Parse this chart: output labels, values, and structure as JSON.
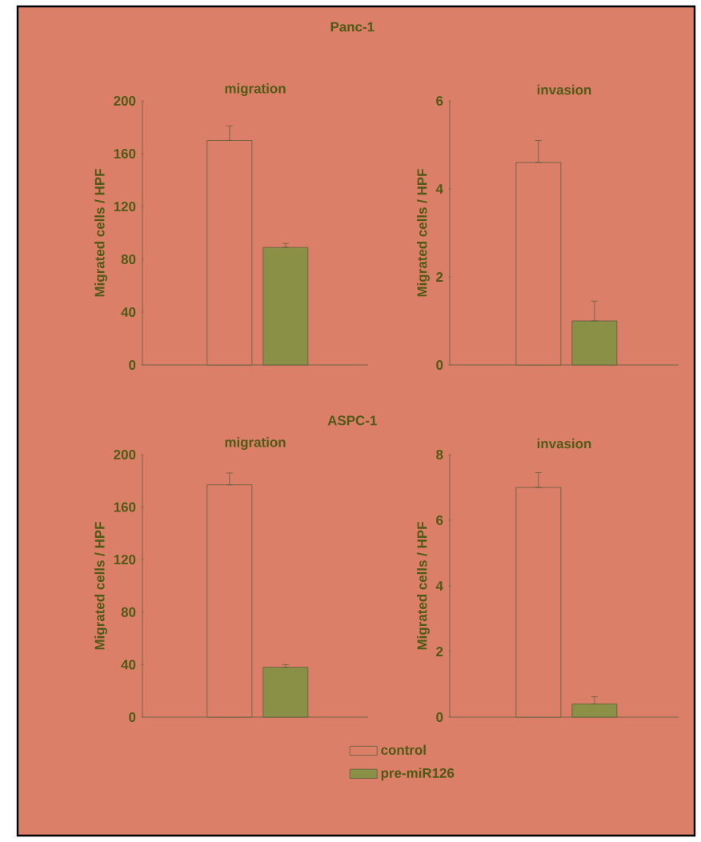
{
  "chart_data": [
    {
      "type": "bar",
      "title": "migration",
      "subtitle": "Panc-1",
      "ylabel": "Migrated cells / HPF",
      "categories": [
        null
      ],
      "ylim": [
        0,
        200
      ],
      "yticks": [
        0,
        40,
        80,
        120,
        160,
        200
      ],
      "tick_labels": "y",
      "series": [
        {
          "color": "#dc7f68",
          "values": [
            170
          ],
          "errors": [
            [
              170,
              181
            ]
          ]
        },
        {
          "color": "#8a9046",
          "values": [
            89
          ],
          "errors": [
            [
              89,
              92
            ]
          ]
        }
      ]
    },
    {
      "type": "bar",
      "title": "invasion",
      "ylabel": "Migrated cells / HPF",
      "categories": [
        null
      ],
      "ylim": [
        0,
        6
      ],
      "yticks": [
        0,
        2,
        4,
        6
      ],
      "tick_labels": "y",
      "series": [
        {
          "color": "#dc7f68",
          "values": [
            4.6
          ],
          "errors": [
            [
              4.6,
              5.1
            ]
          ]
        },
        {
          "color": "#8a9046",
          "values": [
            1.0
          ],
          "errors": [
            [
              1.0,
              1.45
            ]
          ]
        }
      ]
    },
    {
      "type": "bar",
      "title": "migration",
      "subtitle": "ASPC-1",
      "ylabel": "Migrated cells / HPF",
      "categories": [
        null
      ],
      "ylim": [
        0,
        200
      ],
      "yticks": [
        0,
        40,
        80,
        120,
        160,
        200
      ],
      "tick_labels": "y",
      "series": [
        {
          "color": "#dc7f68",
          "values": [
            177
          ],
          "errors": [
            [
              177,
              186
            ]
          ]
        },
        {
          "color": "#8a9046",
          "values": [
            38
          ],
          "errors": [
            [
              38,
              40
            ]
          ]
        }
      ]
    },
    {
      "type": "bar",
      "title": "invasion",
      "ylabel": "Migrated cells / HPF",
      "categories": [
        null
      ],
      "ylim": [
        0,
        8
      ],
      "yticks": [
        0,
        2,
        4,
        6,
        8
      ],
      "tick_labels": "y",
      "legend": "bottom",
      "series": [
        {
          "name": "control",
          "color": "#dc7f68",
          "values": [
            7.0
          ],
          "errors": [
            [
              7.0,
              7.45
            ]
          ]
        },
        {
          "name": "pre-miR126",
          "color": "#8a9046",
          "values": [
            0.4
          ],
          "errors": [
            [
              0.4,
              0.62
            ]
          ]
        }
      ]
    }
  ]
}
